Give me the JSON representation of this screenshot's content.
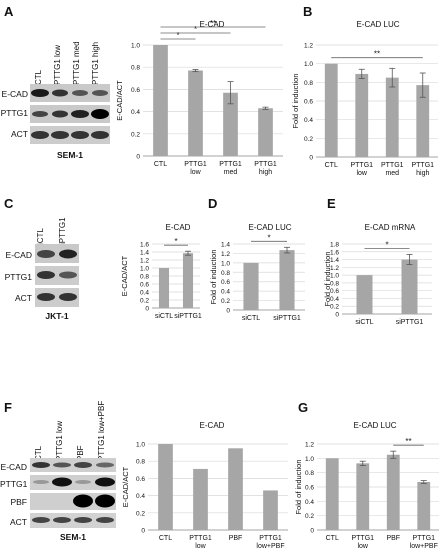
{
  "panels": {
    "A": {
      "letter": "A",
      "cell_line": "SEM-1",
      "blot_rows": [
        "E-CAD",
        "PTTG1",
        "ACT"
      ],
      "lanes": [
        "CTL",
        "PTTG1 low",
        "PTTG1 med",
        "PTTG1 high"
      ]
    },
    "B": {
      "letter": "B"
    },
    "C": {
      "letter": "C",
      "cell_line": "JKT-1",
      "blot_rows": [
        "E-CAD",
        "PTTG1",
        "ACT"
      ],
      "lanes": [
        "siCTL",
        "siPTTG1"
      ]
    },
    "D": {
      "letter": "D"
    },
    "E": {
      "letter": "E"
    },
    "F": {
      "letter": "F",
      "cell_line": "SEM-1",
      "blot_rows": [
        "E-CAD",
        "PTTG1",
        "PBF",
        "ACT"
      ],
      "lanes": [
        "CTL",
        "PTTG1 low",
        "PBF",
        "PTTG1 low+PBF"
      ]
    },
    "G": {
      "letter": "G"
    }
  },
  "chart_data": [
    {
      "id": "A",
      "type": "bar",
      "title": "E-CAD",
      "ylabel": "E-CAD/ACT",
      "categories": [
        "CTL",
        "PTTG1\nlow",
        "PTTG1\nmed",
        "PTTG1\nhigh"
      ],
      "values": [
        1.0,
        0.77,
        0.57,
        0.43
      ],
      "errors": [
        0,
        0.01,
        0.1,
        0.01
      ],
      "ylim": [
        0,
        1.0
      ],
      "yticks": [
        "0",
        "0.2",
        "0.4",
        "0.6",
        "0.8",
        "1.0"
      ],
      "grid": true,
      "significance": [
        {
          "from": 0,
          "to": 1,
          "label": "*"
        },
        {
          "from": 0,
          "to": 2,
          "label": "*"
        },
        {
          "from": 0,
          "to": 3,
          "label": "**"
        }
      ]
    },
    {
      "id": "B",
      "type": "bar",
      "title": "E-CAD LUC",
      "ylabel": "Fold of induction",
      "categories": [
        "CTL",
        "PTTG1\nlow",
        "PTTG1\nmed",
        "PTTG1\nhigh"
      ],
      "values": [
        1.0,
        0.89,
        0.85,
        0.77
      ],
      "errors": [
        0,
        0.05,
        0.1,
        0.13
      ],
      "ylim": [
        0,
        1.2
      ],
      "yticks": [
        "0",
        "0.2",
        "0.4",
        "0.6",
        "0.8",
        "1.0",
        "1.2"
      ],
      "grid": true,
      "significance": [
        {
          "from": 0,
          "to": 3,
          "label": "**"
        }
      ]
    },
    {
      "id": "C",
      "type": "bar",
      "title": "E-CAD",
      "ylabel": "E-CAD/ACT",
      "categories": [
        "siCTL",
        "siPTTG1"
      ],
      "values": [
        1.0,
        1.37
      ],
      "errors": [
        0,
        0.05
      ],
      "ylim": [
        0,
        1.6
      ],
      "yticks": [
        "0",
        "0.2",
        "0.4",
        "0.6",
        "0.8",
        "1.0",
        "1.2",
        "1.4",
        "1.6"
      ],
      "grid": true,
      "significance": [
        {
          "from": 0,
          "to": 1,
          "label": "*"
        }
      ]
    },
    {
      "id": "D",
      "type": "bar",
      "title": "E-CAD LUC",
      "ylabel": "Fold of induction",
      "categories": [
        "siCTL",
        "siPTTG1"
      ],
      "values": [
        1.0,
        1.27
      ],
      "errors": [
        0,
        0.06
      ],
      "ylim": [
        0,
        1.4
      ],
      "yticks": [
        "0",
        "0.2",
        "0.4",
        "0.6",
        "0.8",
        "1.0",
        "1.2",
        "1.4"
      ],
      "grid": true,
      "significance": [
        {
          "from": 0,
          "to": 1,
          "label": "*"
        }
      ]
    },
    {
      "id": "E",
      "type": "bar",
      "title": "E-CAD mRNA",
      "ylabel": "Fold of induction",
      "categories": [
        "siCTL",
        "siPTTG1"
      ],
      "values": [
        1.0,
        1.4
      ],
      "errors": [
        0,
        0.13
      ],
      "ylim": [
        0,
        1.8
      ],
      "yticks": [
        "0",
        "0.2",
        "0.4",
        "0.6",
        "0.8",
        "1.0",
        "1.2",
        "1.4",
        "1.6",
        "1.8"
      ],
      "grid": true,
      "significance": [
        {
          "from": 0,
          "to": 1,
          "label": "*"
        }
      ]
    },
    {
      "id": "F",
      "type": "bar",
      "title": "E-CAD",
      "ylabel": "E-CAD/ACT",
      "categories": [
        "CTL",
        "PTTG1\nlow",
        "PBF",
        "PTTG1\nlow+PBF"
      ],
      "values": [
        1.0,
        0.71,
        0.95,
        0.46
      ],
      "errors": [
        0,
        0,
        0,
        0
      ],
      "ylim": [
        0,
        1.0
      ],
      "yticks": [
        "0",
        "0.2",
        "0.4",
        "0.6",
        "0.8",
        "1.0"
      ],
      "grid": true,
      "significance": []
    },
    {
      "id": "G",
      "type": "bar",
      "title": "E-CAD LUC",
      "ylabel": "Fold of induction",
      "categories": [
        "CTL",
        "PTTG1\nlow",
        "PBF",
        "PTTG1\nlow+PBF"
      ],
      "values": [
        1.0,
        0.93,
        1.05,
        0.67
      ],
      "errors": [
        0,
        0.03,
        0.05,
        0.02
      ],
      "ylim": [
        0,
        1.2
      ],
      "yticks": [
        "0",
        "0.2",
        "0.4",
        "0.6",
        "0.8",
        "1.0",
        "1.2"
      ],
      "grid": true,
      "significance": [
        {
          "from": 2,
          "to": 3,
          "label": "**"
        }
      ]
    }
  ],
  "colors": {
    "bar": "#a6a6a6",
    "axis": "#888888",
    "grid": "#d9d9d9",
    "text": "#111111"
  }
}
